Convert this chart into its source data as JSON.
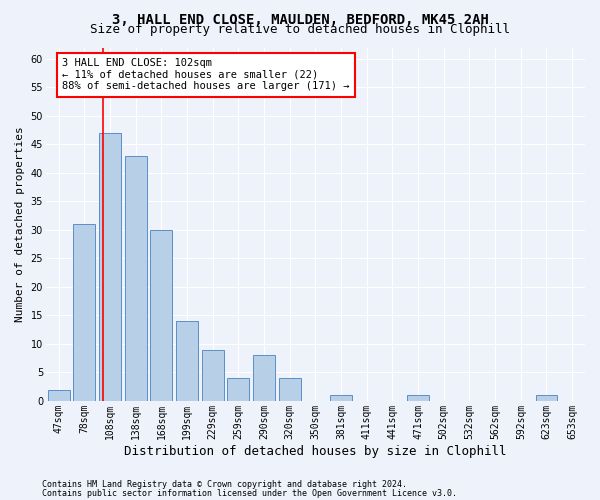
{
  "title_line1": "3, HALL END CLOSE, MAULDEN, BEDFORD, MK45 2AH",
  "title_line2": "Size of property relative to detached houses in Clophill",
  "xlabel": "Distribution of detached houses by size in Clophill",
  "ylabel": "Number of detached properties",
  "categories": [
    "47sqm",
    "78sqm",
    "108sqm",
    "138sqm",
    "168sqm",
    "199sqm",
    "229sqm",
    "259sqm",
    "290sqm",
    "320sqm",
    "350sqm",
    "381sqm",
    "411sqm",
    "441sqm",
    "471sqm",
    "502sqm",
    "532sqm",
    "562sqm",
    "592sqm",
    "623sqm",
    "653sqm"
  ],
  "values": [
    2,
    31,
    47,
    43,
    30,
    14,
    9,
    4,
    8,
    4,
    0,
    1,
    0,
    0,
    1,
    0,
    0,
    0,
    0,
    1,
    0
  ],
  "bar_color": "#b8cfe8",
  "bar_edge_color": "#5b8fc9",
  "vline_color": "red",
  "annotation_text": "3 HALL END CLOSE: 102sqm\n← 11% of detached houses are smaller (22)\n88% of semi-detached houses are larger (171) →",
  "annotation_box_color": "white",
  "annotation_box_edge": "red",
  "ylim": [
    0,
    62
  ],
  "yticks": [
    0,
    5,
    10,
    15,
    20,
    25,
    30,
    35,
    40,
    45,
    50,
    55,
    60
  ],
  "footer_line1": "Contains HM Land Registry data © Crown copyright and database right 2024.",
  "footer_line2": "Contains public sector information licensed under the Open Government Licence v3.0.",
  "bg_color": "#eef2fb",
  "plot_bg_color": "#eef2fb",
  "grid_color": "#ffffff",
  "title_fontsize": 10,
  "subtitle_fontsize": 9,
  "tick_fontsize": 7,
  "ylabel_fontsize": 8,
  "xlabel_fontsize": 9,
  "annot_fontsize": 7.5,
  "footer_fontsize": 6
}
